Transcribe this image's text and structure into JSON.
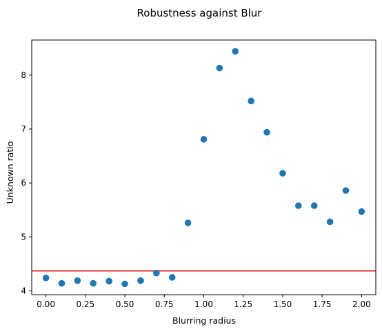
{
  "chart_data": {
    "type": "scatter",
    "title": "Robustness against Blur",
    "xlabel": "Blurring radius",
    "ylabel": "Unknown ratio",
    "xlim": [
      -0.09,
      2.09
    ],
    "ylim": [
      3.93,
      8.65
    ],
    "xticks": [
      0.0,
      0.25,
      0.5,
      0.75,
      1.0,
      1.25,
      1.5,
      1.75,
      2.0
    ],
    "xtick_labels": [
      "0.00",
      "0.25",
      "0.50",
      "0.75",
      "1.00",
      "1.25",
      "1.50",
      "1.75",
      "2.00"
    ],
    "yticks": [
      4,
      5,
      6,
      7,
      8
    ],
    "ytick_labels": [
      "4",
      "5",
      "6",
      "7",
      "8"
    ],
    "grid": false,
    "point_color": "#1f77b4",
    "reference_line": {
      "y": 4.37,
      "color": "#dd0000"
    },
    "series": [
      {
        "x": [
          0.0,
          0.1,
          0.2,
          0.3,
          0.4,
          0.5,
          0.6,
          0.7,
          0.8,
          0.9,
          1.0,
          1.1,
          1.2,
          1.3,
          1.4,
          1.5,
          1.6,
          1.7,
          1.8,
          1.9,
          2.0
        ],
        "y": [
          4.24,
          4.14,
          4.19,
          4.14,
          4.18,
          4.13,
          4.19,
          4.33,
          4.25,
          5.26,
          6.81,
          8.13,
          8.44,
          7.52,
          6.94,
          6.18,
          5.58,
          5.58,
          5.28,
          5.86,
          5.47
        ]
      }
    ]
  }
}
